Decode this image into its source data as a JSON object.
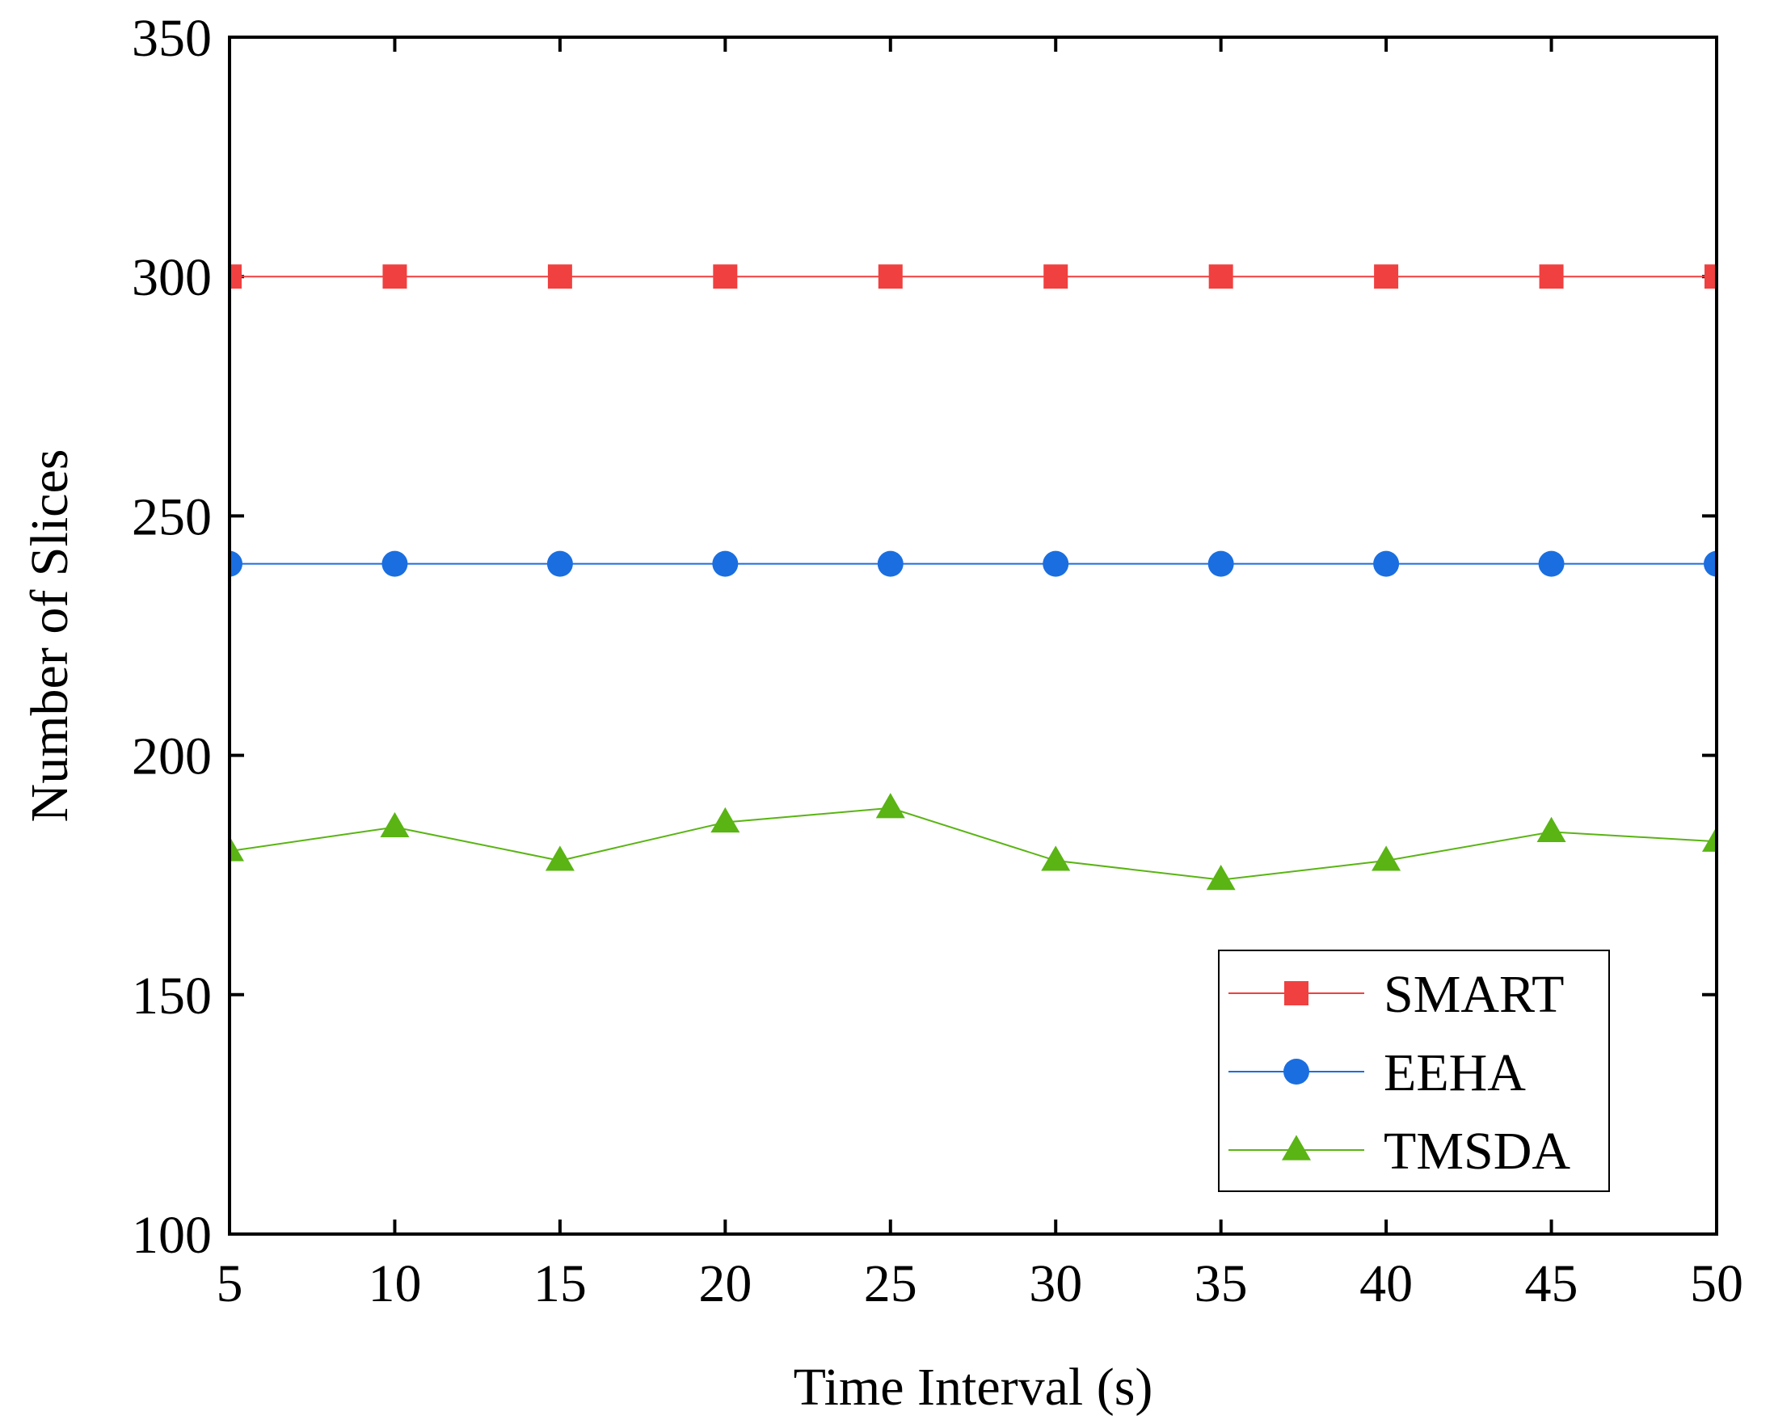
{
  "chart_data": {
    "type": "line",
    "title": "",
    "xlabel": "Time Interval (s)",
    "ylabel": "Number of Slices",
    "x": [
      5,
      10,
      15,
      20,
      25,
      30,
      35,
      40,
      45,
      50
    ],
    "xlim": [
      5,
      50
    ],
    "ylim": [
      100,
      350
    ],
    "xticks": [
      "5",
      "10",
      "15",
      "20",
      "25",
      "30",
      "35",
      "40",
      "45",
      "50"
    ],
    "yticks": [
      "100",
      "150",
      "200",
      "250",
      "300",
      "350"
    ],
    "grid": false,
    "legend_position": "bottom-right",
    "series": [
      {
        "name": "SMART",
        "marker": "square",
        "color": "#f04040",
        "values": [
          300,
          300,
          300,
          300,
          300,
          300,
          300,
          300,
          300,
          300
        ]
      },
      {
        "name": "EEHA",
        "marker": "circle",
        "color": "#1a6ee0",
        "values": [
          240,
          240,
          240,
          240,
          240,
          240,
          240,
          240,
          240,
          240
        ]
      },
      {
        "name": "TMSDA",
        "marker": "triangle",
        "color": "#5ab414",
        "values": [
          180,
          185,
          178,
          186,
          189,
          178,
          174,
          178,
          184,
          182
        ]
      }
    ]
  }
}
